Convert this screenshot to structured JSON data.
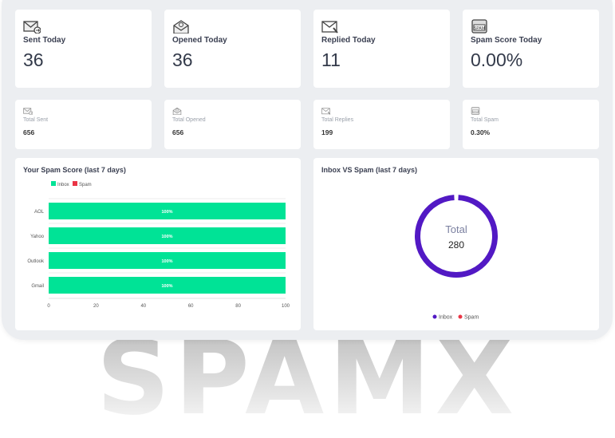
{
  "stats_today": [
    {
      "label": "Sent Today",
      "value": "36",
      "icon": "mail-send-icon"
    },
    {
      "label": "Opened Today",
      "value": "36",
      "icon": "mail-open-icon"
    },
    {
      "label": "Replied Today",
      "value": "11",
      "icon": "mail-reply-icon"
    },
    {
      "label": "Spam Score Today",
      "value": "0.00%",
      "icon": "spam-icon"
    }
  ],
  "stats_total": [
    {
      "label": "Total Sent",
      "value": "656",
      "icon": "mail-send-icon"
    },
    {
      "label": "Total Opened",
      "value": "656",
      "icon": "mail-open-icon"
    },
    {
      "label": "Total Replies",
      "value": "199",
      "icon": "mail-reply-icon"
    },
    {
      "label": "Total Spam",
      "value": "0.30%",
      "icon": "spam-icon"
    }
  ],
  "watermark": "SPAMX",
  "chart_data": [
    {
      "type": "bar",
      "orientation": "horizontal",
      "stacked": true,
      "title": "Your Spam Score (last 7 days)",
      "categories": [
        "AOL",
        "Yahoo",
        "Outlook",
        "Gmail"
      ],
      "series": [
        {
          "name": "Inbox",
          "color": "#00e396",
          "values": [
            100,
            100,
            100,
            100
          ]
        },
        {
          "name": "Spam",
          "color": "#ea3546",
          "values": [
            0,
            0,
            0,
            0
          ]
        }
      ],
      "data_labels": [
        "100%",
        "100%",
        "100%",
        "100%"
      ],
      "xlim": [
        0,
        100
      ],
      "xticks": [
        "0",
        "20",
        "40",
        "60",
        "80",
        "100"
      ],
      "legend": "top-left"
    },
    {
      "type": "pie",
      "donut": true,
      "title": "Inbox VS Spam (last 7 days)",
      "center_label": "Total",
      "center_value": "280",
      "series": [
        {
          "name": "Inbox",
          "color": "#5219c4",
          "value": 280
        },
        {
          "name": "Spam",
          "color": "#ea3546",
          "value": 0
        }
      ],
      "legend": "bottom"
    }
  ]
}
